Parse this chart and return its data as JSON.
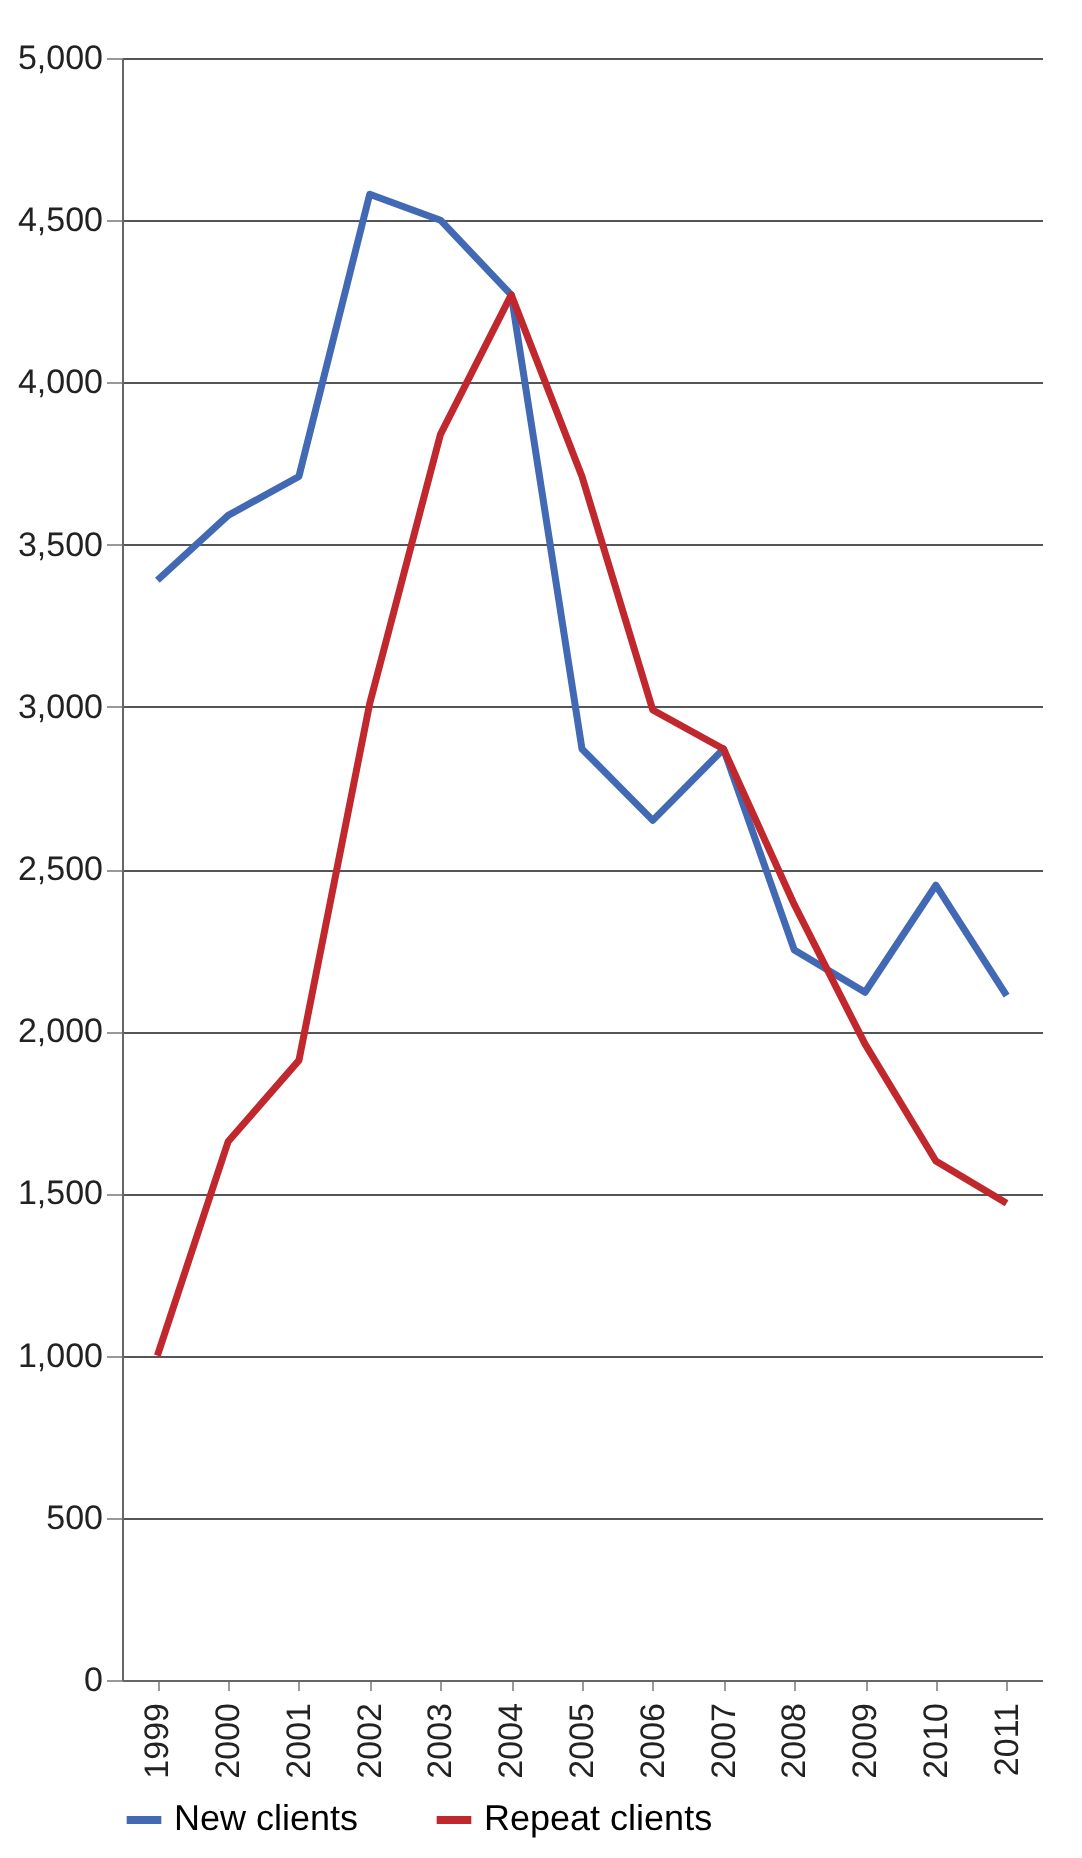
{
  "chart_data": {
    "type": "line",
    "categories": [
      "1999",
      "2000",
      "2001",
      "2002",
      "2003",
      "2004",
      "2005",
      "2006",
      "2007",
      "2008",
      "2009",
      "2010",
      "2011"
    ],
    "series": [
      {
        "name": "New clients",
        "color": "#4169b4",
        "values": [
          3390,
          3590,
          3710,
          4580,
          4500,
          4270,
          2870,
          2650,
          2870,
          2250,
          2120,
          2450,
          2110
        ]
      },
      {
        "name": "Repeat clients",
        "color": "#c0282d",
        "values": [
          1000,
          1660,
          1910,
          3010,
          3840,
          4270,
          3710,
          2990,
          2870,
          2390,
          1960,
          1600,
          1470
        ]
      }
    ],
    "ylim": [
      0,
      5000
    ],
    "yticks": [
      0,
      500,
      {
        "value": 1000,
        "label": "1,000"
      },
      {
        "value": 1500,
        "label": "1,500"
      },
      {
        "value": 2000,
        "label": "2,000"
      },
      {
        "value": 2500,
        "label": "2,500"
      },
      {
        "value": 3000,
        "label": "3,000"
      },
      {
        "value": 3500,
        "label": "3,500"
      },
      {
        "value": 4000,
        "label": "4,000"
      },
      {
        "value": 4500,
        "label": "4,500"
      },
      {
        "value": 5000,
        "label": "5,000"
      }
    ],
    "grid": "y",
    "legend": "bottom"
  }
}
